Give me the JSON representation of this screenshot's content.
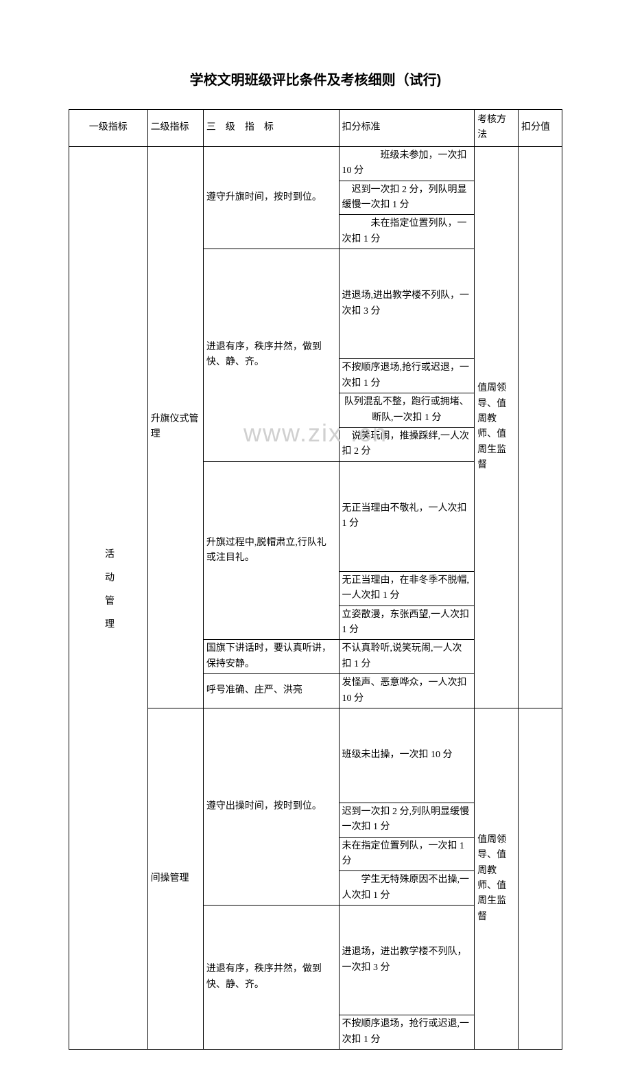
{
  "title": "学校文明班级评比条件及考核细则（试行)",
  "watermark": "www.zix          .cn",
  "headers": {
    "col1": "一级指标",
    "col2": "二级指标",
    "col3": "三　级　指　标",
    "col4": "扣分标准",
    "col5": "考核方法",
    "col6": "扣分值"
  },
  "level1": "活动管理",
  "section1": {
    "level2": "升旗仪式管理",
    "level3_1": "遵守升旗时间，按时到位。",
    "criteria_1_1": "　　　　班级未参加，一次扣 10 分",
    "criteria_1_2": "　迟到一次扣 2 分，列队明显缓慢一次扣 1 分",
    "criteria_1_3": "　　　未在指定位置列队，一次扣 1 分",
    "level3_2": "进退有序，秩序井然，做到快、静、齐。",
    "criteria_2_1": "进退场,进出教学楼不列队，一次扣 3 分",
    "criteria_2_2": "不按顺序退场,抢行或迟退，一次扣 1 分",
    "criteria_2_3": "队列混乱不整，跑行或拥堵、断队,一次扣 1 分",
    "criteria_2_4": "　说笑玩闹，推搡踩绊,一人次扣 2 分",
    "level3_3": "升旗过程中,脱帽肃立,行队礼或注目礼。",
    "criteria_3_1": "无正当理由不敬礼，一人次扣 1 分",
    "criteria_3_2": "无正当理由，在非冬季不脱帽,一人次扣 1 分",
    "criteria_3_3": "立姿散漫，东张西望,一人次扣 1 分",
    "level3_4": "国旗下讲话时，要认真听讲，保持安静。",
    "criteria_4_1": "不认真聆听,说笑玩闹,一人次扣 1 分",
    "level3_5": "呼号准确、庄严、洪亮",
    "criteria_5_1": "发怪声、恶意哗众，一人次扣 10 分",
    "method": "值周领导、值周教师、值周生监督"
  },
  "section2": {
    "level2": "间操管理",
    "level3_1": "遵守出操时间，按时到位。",
    "criteria_1_1": "班级未出操，一次扣 10 分",
    "criteria_1_2": "迟到一次扣 2 分,列队明显缓慢一次扣 1 分",
    "criteria_1_3": "未在指定位置列队，一次扣 1 分",
    "criteria_1_4": "　　学生无特殊原因不出操,一人次扣 1 分",
    "level3_2": "进退有序，秩序井然，做到快、静、齐。",
    "criteria_2_1": "进退场，进出教学楼不列队，一次扣 3 分",
    "criteria_2_2": "不按顺序退场，抢行或迟退,一次扣 1 分",
    "method": "值周领导、值周教师、值周生监督"
  }
}
